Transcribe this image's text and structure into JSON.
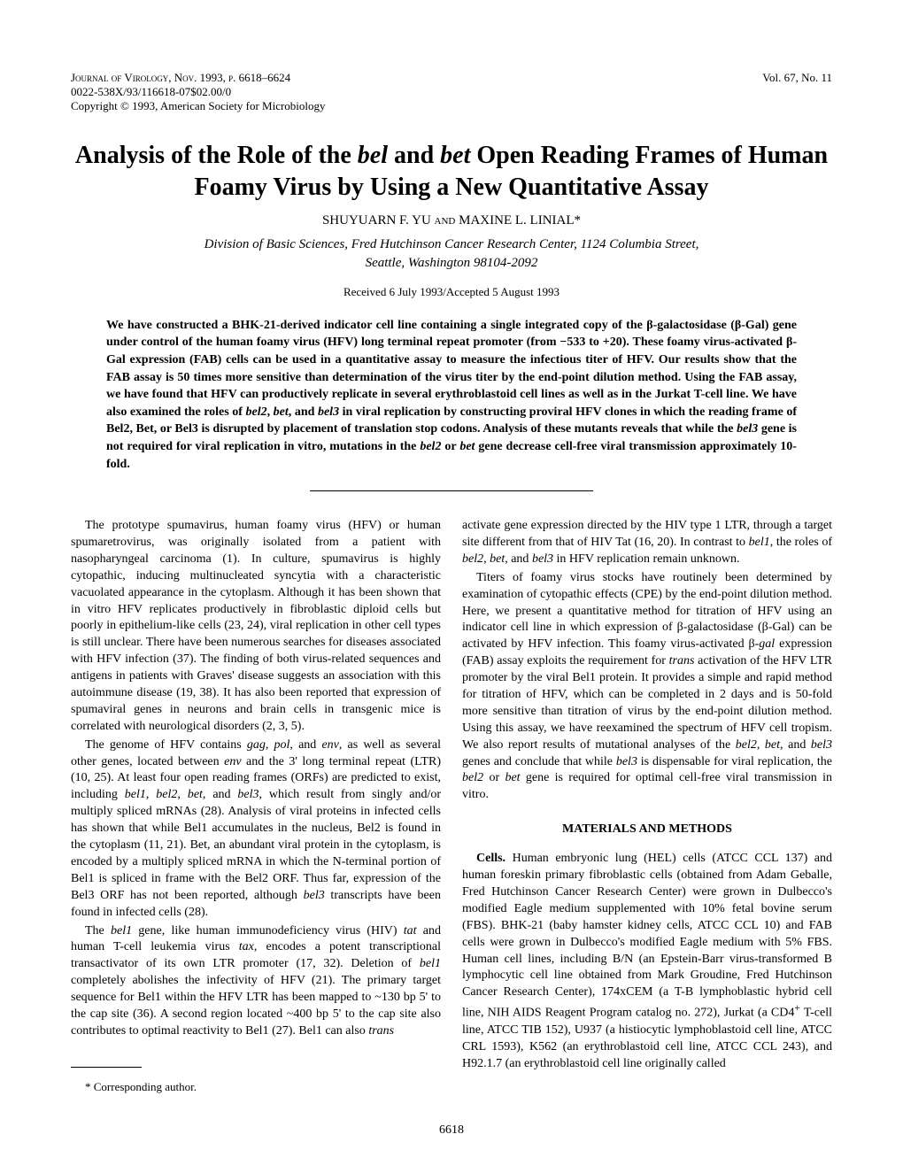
{
  "header": {
    "journal_line": "Journal of Virology, Nov. 1993, p. 6618–6624",
    "issn_line": "0022-538X/93/116618-07$02.00/0",
    "copyright_line": "Copyright © 1993, American Society for Microbiology",
    "vol_issue": "Vol. 67, No. 11"
  },
  "title_html": "Analysis of the Role of the <span class=\"italic\">bel</span> and <span class=\"italic\">bet</span> Open Reading Frames of Human Foamy Virus by Using a New Quantitative Assay",
  "authors_html": "SHUYUARN F. YU <span style=\"font-variant:small-caps\">and</span> MAXINE L. LINIAL*",
  "affiliation_html": "Division of Basic Sciences, Fred Hutchinson Cancer Research Center, 1124 Columbia Street,<br>Seattle, Washington 98104-2092",
  "received": "Received 6 July 1993/Accepted 5 August 1993",
  "abstract_html": "We have constructed a BHK-21-derived indicator cell line containing a single integrated copy of the β-galactosidase (β-Gal) gene under control of the human foamy virus (HFV) long terminal repeat promoter (from −533 to +20). These foamy virus-activated β-Gal expression (FAB) cells can be used in a quantitative assay to measure the infectious titer of HFV. Our results show that the FAB assay is 50 times more sensitive than determination of the virus titer by the end-point dilution method. Using the FAB assay, we have found that HFV can productively replicate in several erythroblastoid cell lines as well as in the Jurkat T-cell line. We have also examined the roles of <span class=\"italic\">bel2</span>, <span class=\"italic\">bet</span>, and <span class=\"italic\">bel3</span> in viral replication by constructing proviral HFV clones in which the reading frame of Bel2, Bet, or Bel3 is disrupted by placement of translation stop codons. Analysis of these mutants reveals that while the <span class=\"italic\">bel3</span> gene is not required for viral replication in vitro, mutations in the <span class=\"italic\">bel2</span> or <span class=\"italic\">bet</span> gene decrease cell-free viral transmission approximately 10-fold.",
  "left_col": {
    "p1_html": "The prototype spumavirus, human foamy virus (HFV) or human spumaretrovirus, was originally isolated from a patient with nasopharyngeal carcinoma (1). In culture, spumavirus is highly cytopathic, inducing multinucleated syncytia with a characteristic vacuolated appearance in the cytoplasm. Although it has been shown that in vitro HFV replicates productively in fibroblastic diploid cells but poorly in epithelium-like cells (23, 24), viral replication in other cell types is still unclear. There have been numerous searches for diseases associated with HFV infection (37). The finding of both virus-related sequences and antigens in patients with Graves' disease suggests an association with this autoimmune disease (19, 38). It has also been reported that expression of spumaviral genes in neurons and brain cells in transgenic mice is correlated with neurological disorders (2, 3, 5).",
    "p2_html": "The genome of HFV contains <span class=\"italic\">gag</span>, <span class=\"italic\">pol</span>, and <span class=\"italic\">env</span>, as well as several other genes, located between <span class=\"italic\">env</span> and the 3' long terminal repeat (LTR) (10, 25). At least four open reading frames (ORFs) are predicted to exist, including <span class=\"italic\">bel1</span>, <span class=\"italic\">bel2</span>, <span class=\"italic\">bet</span>, and <span class=\"italic\">bel3</span>, which result from singly and/or multiply spliced mRNAs (28). Analysis of viral proteins in infected cells has shown that while Bel1 accumulates in the nucleus, Bel2 is found in the cytoplasm (11, 21). Bet, an abundant viral protein in the cytoplasm, is encoded by a multiply spliced mRNA in which the N-terminal portion of Bel1 is spliced in frame with the Bel2 ORF. Thus far, expression of the Bel3 ORF has not been reported, although <span class=\"italic\">bel3</span> transcripts have been found in infected cells (28).",
    "p3_html": "The <span class=\"italic\">bel1</span> gene, like human immunodeficiency virus (HIV) <span class=\"italic\">tat</span> and human T-cell leukemia virus <span class=\"italic\">tax</span>, encodes a potent transcriptional transactivator of its own LTR promoter (17, 32). Deletion of <span class=\"italic\">bel1</span> completely abolishes the infectivity of HFV (21). The primary target sequence for Bel1 within the HFV LTR has been mapped to ~130 bp 5' to the cap site (36). A second region located ~400 bp 5' to the cap site also contributes to optimal reactivity to Bel1 (27). Bel1 can also <span class=\"italic\">trans</span>"
  },
  "right_col": {
    "p1_html": "activate gene expression directed by the HIV type 1 LTR, through a target site different from that of HIV Tat (16, 20). In contrast to <span class=\"italic\">bel1</span>, the roles of <span class=\"italic\">bel2</span>, <span class=\"italic\">bet</span>, and <span class=\"italic\">bel3</span> in HFV replication remain unknown.",
    "p2_html": "Titers of foamy virus stocks have routinely been determined by examination of cytopathic effects (CPE) by the end-point dilution method. Here, we present a quantitative method for titration of HFV using an indicator cell line in which expression of β-galactosidase (β-Gal) can be activated by HFV infection. This foamy virus-activated β-<span class=\"italic\">gal</span> expression (FAB) assay exploits the requirement for <span class=\"italic\">trans</span> activation of the HFV LTR promoter by the viral Bel1 protein. It provides a simple and rapid method for titration of HFV, which can be completed in 2 days and is 50-fold more sensitive than titration of virus by the end-point dilution method. Using this assay, we have reexamined the spectrum of HFV cell tropism. We also report results of mutational analyses of the <span class=\"italic\">bel2</span>, <span class=\"italic\">bet</span>, and <span class=\"italic\">bel3</span> genes and conclude that while <span class=\"italic\">bel3</span> is dispensable for viral replication, the <span class=\"italic\">bel2</span> or <span class=\"italic\">bet</span> gene is required for optimal cell-free viral transmission in vitro.",
    "heading": "MATERIALS AND METHODS",
    "p3_html": "<b>Cells.</b> Human embryonic lung (HEL) cells (ATCC CCL 137) and human foreskin primary fibroblastic cells (obtained from Adam Geballe, Fred Hutchinson Cancer Research Center) were grown in Dulbecco's modified Eagle medium supplemented with 10% fetal bovine serum (FBS). BHK-21 (baby hamster kidney cells, ATCC CCL 10) and FAB cells were grown in Dulbecco's modified Eagle medium with 5% FBS. Human cell lines, including B/N (an Epstein-Barr virus-transformed B lymphocytic cell line obtained from Mark Groudine, Fred Hutchinson Cancer Research Center), 174xCEM (a T-B lymphoblastic hybrid cell line, NIH AIDS Reagent Program catalog no. 272), Jurkat (a CD4<sup>+</sup> T-cell line, ATCC TIB 152), U937 (a histiocytic lymphoblastoid cell line, ATCC CRL 1593), K562 (an erythroblastoid cell line, ATCC CCL 243), and H92.1.7 (an erythroblastoid cell line originally called"
  },
  "footnote": "* Corresponding author.",
  "page_number": "6618"
}
